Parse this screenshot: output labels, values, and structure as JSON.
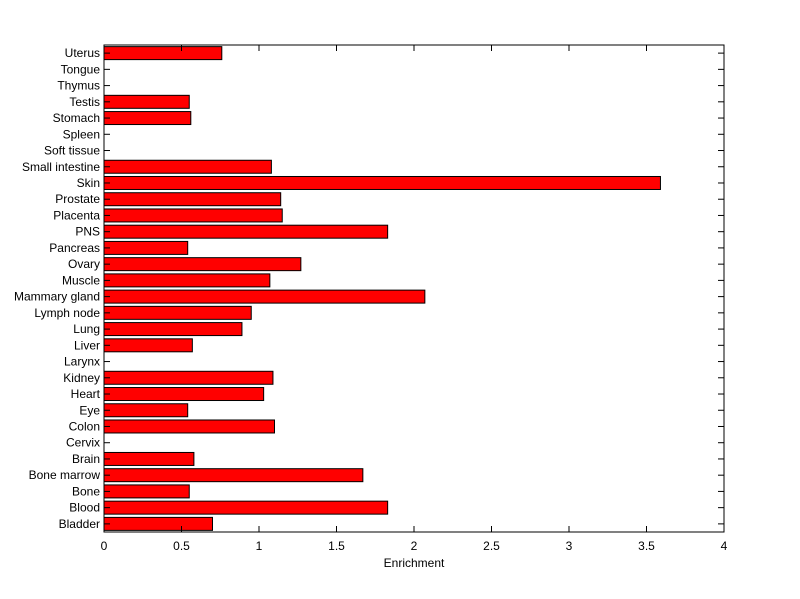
{
  "chart_data": {
    "type": "bar",
    "orientation": "horizontal",
    "title": "",
    "xlabel": "Enrichment",
    "ylabel": "",
    "xlim": [
      0,
      4
    ],
    "xticks": [
      0,
      0.5,
      1,
      1.5,
      2,
      2.5,
      3,
      3.5,
      4
    ],
    "xtick_labels": [
      "0",
      "0.5",
      "1",
      "1.5",
      "2",
      "2.5",
      "3",
      "3.5",
      "4"
    ],
    "grid": false,
    "bar_color": "#ff0000",
    "edge_color": "#000000",
    "categories": [
      "Bladder",
      "Blood",
      "Bone",
      "Bone marrow",
      "Brain",
      "Cervix",
      "Colon",
      "Eye",
      "Heart",
      "Kidney",
      "Larynx",
      "Liver",
      "Lung",
      "Lymph node",
      "Mammary gland",
      "Muscle",
      "Ovary",
      "Pancreas",
      "PNS",
      "Placenta",
      "Prostate",
      "Skin",
      "Small intestine",
      "Soft tissue",
      "Spleen",
      "Stomach",
      "Testis",
      "Thymus",
      "Tongue",
      "Uterus"
    ],
    "values": [
      0.7,
      1.83,
      0.55,
      1.67,
      0.58,
      0,
      1.1,
      0.54,
      1.03,
      1.09,
      0,
      0.57,
      0.89,
      0.95,
      2.07,
      1.07,
      1.27,
      0.54,
      1.83,
      1.15,
      1.14,
      3.59,
      1.08,
      0,
      0,
      0.56,
      0.55,
      0,
      0,
      0.76
    ]
  }
}
